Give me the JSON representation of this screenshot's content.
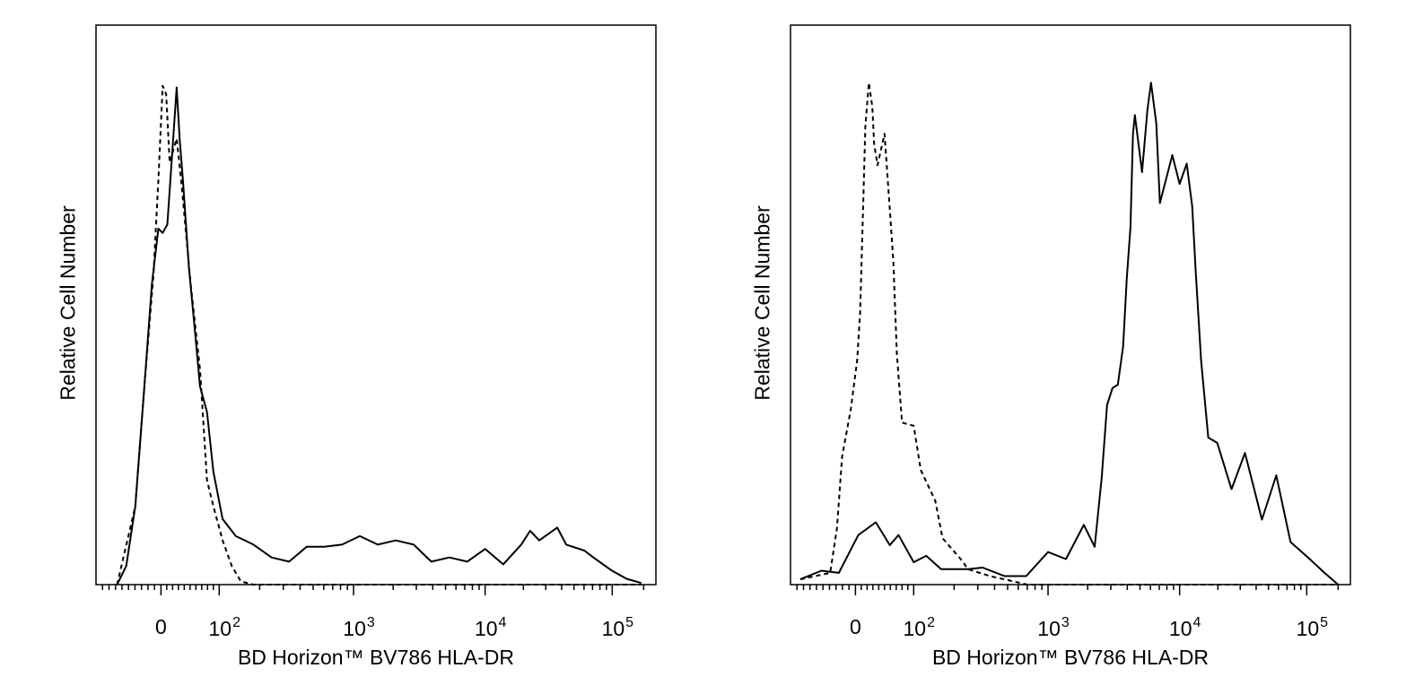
{
  "chart_data": [
    {
      "type": "line",
      "title": "",
      "xlabel": "BD Horizon™ BV786 HLA-DR",
      "ylabel": "Relative Cell Number",
      "x_scale": "biexponential",
      "xlim": [
        -200,
        262144
      ],
      "ylim": [
        0,
        105
      ],
      "grid": false,
      "tick_labels": [
        {
          "value": 0,
          "base": "0",
          "exp": ""
        },
        {
          "value": 100,
          "base": "10",
          "exp": "2"
        },
        {
          "value": 1000,
          "base": "10",
          "exp": "3"
        },
        {
          "value": 10000,
          "base": "10",
          "exp": "4"
        },
        {
          "value": 100000,
          "base": "10",
          "exp": "5"
        }
      ],
      "series": [
        {
          "style": "solid",
          "points": [
            [
              -135,
              0
            ],
            [
              -107,
              3.5
            ],
            [
              -79,
              14.7
            ],
            [
              -51,
              37.2
            ],
            [
              -28,
              56.4
            ],
            [
              -8,
              66.8
            ],
            [
              3,
              66
            ],
            [
              11,
              67.6
            ],
            [
              19,
              80.4
            ],
            [
              27,
              93.3
            ],
            [
              32,
              83.7
            ],
            [
              38,
              75.6
            ],
            [
              48,
              59.6
            ],
            [
              59,
              46.8
            ],
            [
              67,
              37.2
            ],
            [
              79,
              32.4
            ],
            [
              90,
              21.2
            ],
            [
              106,
              12.3
            ],
            [
              133,
              9.1
            ],
            [
              180,
              7.5
            ],
            [
              245,
              5.1
            ],
            [
              331,
              4.3
            ],
            [
              448,
              7.1
            ],
            [
              606,
              7.1
            ],
            [
              820,
              7.5
            ],
            [
              1116,
              9.1
            ],
            [
              1526,
              7.5
            ],
            [
              2090,
              8.3
            ],
            [
              2860,
              7.5
            ],
            [
              3900,
              4.3
            ],
            [
              5350,
              5.1
            ],
            [
              7310,
              4.3
            ],
            [
              10000,
              6.7
            ],
            [
              13860,
              3.8
            ],
            [
              19230,
              7.5
            ],
            [
              22600,
              10.1
            ],
            [
              26650,
              8.3
            ],
            [
              36900,
              10.7
            ],
            [
              43500,
              7.5
            ],
            [
              60300,
              6.4
            ],
            [
              71000,
              5.1
            ],
            [
              98400,
              2.7
            ],
            [
              137000,
              1.1
            ],
            [
              190000,
              0.3
            ]
          ]
        },
        {
          "style": "dashed",
          "points": [
            [
              -135,
              0
            ],
            [
              -79,
              14.7
            ],
            [
              -51,
              37.2
            ],
            [
              -23,
              58.3
            ],
            [
              -8,
              75.9
            ],
            [
              3,
              93.6
            ],
            [
              9,
              92
            ],
            [
              15,
              79.2
            ],
            [
              27,
              83.7
            ],
            [
              35,
              75.6
            ],
            [
              51,
              56.4
            ],
            [
              67,
              40.4
            ],
            [
              79,
              19.6
            ],
            [
              90,
              14.7
            ],
            [
              106,
              8.3
            ],
            [
              124,
              3.5
            ],
            [
              145,
              0.6
            ],
            [
              180,
              0
            ],
            [
              190000,
              0
            ]
          ]
        }
      ]
    },
    {
      "type": "line",
      "title": "",
      "xlabel": "BD Horizon™ BV786 HLA-DR",
      "ylabel": "Relative Cell Number",
      "x_scale": "biexponential",
      "xlim": [
        -200,
        262144
      ],
      "ylim": [
        0,
        105
      ],
      "grid": false,
      "tick_labels": [
        {
          "value": 0,
          "base": "0",
          "exp": ""
        },
        {
          "value": 100,
          "base": "10",
          "exp": "2"
        },
        {
          "value": 1000,
          "base": "10",
          "exp": "3"
        },
        {
          "value": 10000,
          "base": "10",
          "exp": "4"
        },
        {
          "value": 100000,
          "base": "10",
          "exp": "5"
        }
      ],
      "series": [
        {
          "style": "solid",
          "points": [
            [
              -170,
              1.0
            ],
            [
              -105,
              2.6
            ],
            [
              -51,
              2.2
            ],
            [
              5,
              9.3
            ],
            [
              35,
              11.7
            ],
            [
              59,
              7.4
            ],
            [
              74,
              9.3
            ],
            [
              100,
              4.2
            ],
            [
              124,
              5.4
            ],
            [
              160,
              2.9
            ],
            [
              254,
              2.9
            ],
            [
              326,
              3.2
            ],
            [
              474,
              1.6
            ],
            [
              688,
              1.6
            ],
            [
              1000,
              6.1
            ],
            [
              1368,
              4.8
            ],
            [
              1871,
              11.2
            ],
            [
              2260,
              7.1
            ],
            [
              2560,
              20.2
            ],
            [
              2810,
              33.7
            ],
            [
              3090,
              36.9
            ],
            [
              3390,
              37.5
            ],
            [
              3720,
              44.7
            ],
            [
              3970,
              57.5
            ],
            [
              4230,
              67.1
            ],
            [
              4420,
              84.6
            ],
            [
              4570,
              88.1
            ],
            [
              5180,
              77.4
            ],
            [
              5690,
              89.1
            ],
            [
              6060,
              94.2
            ],
            [
              6650,
              86.5
            ],
            [
              7080,
              71.6
            ],
            [
              8800,
              80.6
            ],
            [
              10000,
              75.2
            ],
            [
              11380,
              79.0
            ],
            [
              12550,
              71.0
            ],
            [
              13390,
              58.8
            ],
            [
              14760,
              42.1
            ],
            [
              16800,
              27.6
            ],
            [
              19770,
              26.6
            ],
            [
              25600,
              17.9
            ],
            [
              32660,
              24.7
            ],
            [
              44400,
              12.2
            ],
            [
              57600,
              20.5
            ],
            [
              74600,
              8.0
            ],
            [
              107000,
              4.8
            ],
            [
              148000,
              2.2
            ],
            [
              168000,
              1.3
            ],
            [
              200000,
              0
            ]
          ]
        },
        {
          "style": "dashed",
          "points": [
            [
              -170,
              1.0
            ],
            [
              -78,
              2.2
            ],
            [
              -57,
              10.6
            ],
            [
              -41,
              24.0
            ],
            [
              -14,
              33.0
            ],
            [
              3,
              42.1
            ],
            [
              8,
              51.1
            ],
            [
              14,
              74.2
            ],
            [
              17,
              85.9
            ],
            [
              23,
              94.2
            ],
            [
              29,
              89.7
            ],
            [
              32,
              82.7
            ],
            [
              38,
              78.7
            ],
            [
              50,
              84.6
            ],
            [
              59,
              70.4
            ],
            [
              65,
              60.7
            ],
            [
              71,
              43.4
            ],
            [
              80,
              30.4
            ],
            [
              100,
              29.8
            ],
            [
              113,
              21.5
            ],
            [
              145,
              15.7
            ],
            [
              164,
              8.7
            ],
            [
              224,
              4.8
            ],
            [
              254,
              2.9
            ],
            [
              369,
              1.6
            ],
            [
              474,
              1.0
            ],
            [
              700,
              0
            ],
            [
              200000,
              0
            ]
          ]
        }
      ]
    }
  ]
}
